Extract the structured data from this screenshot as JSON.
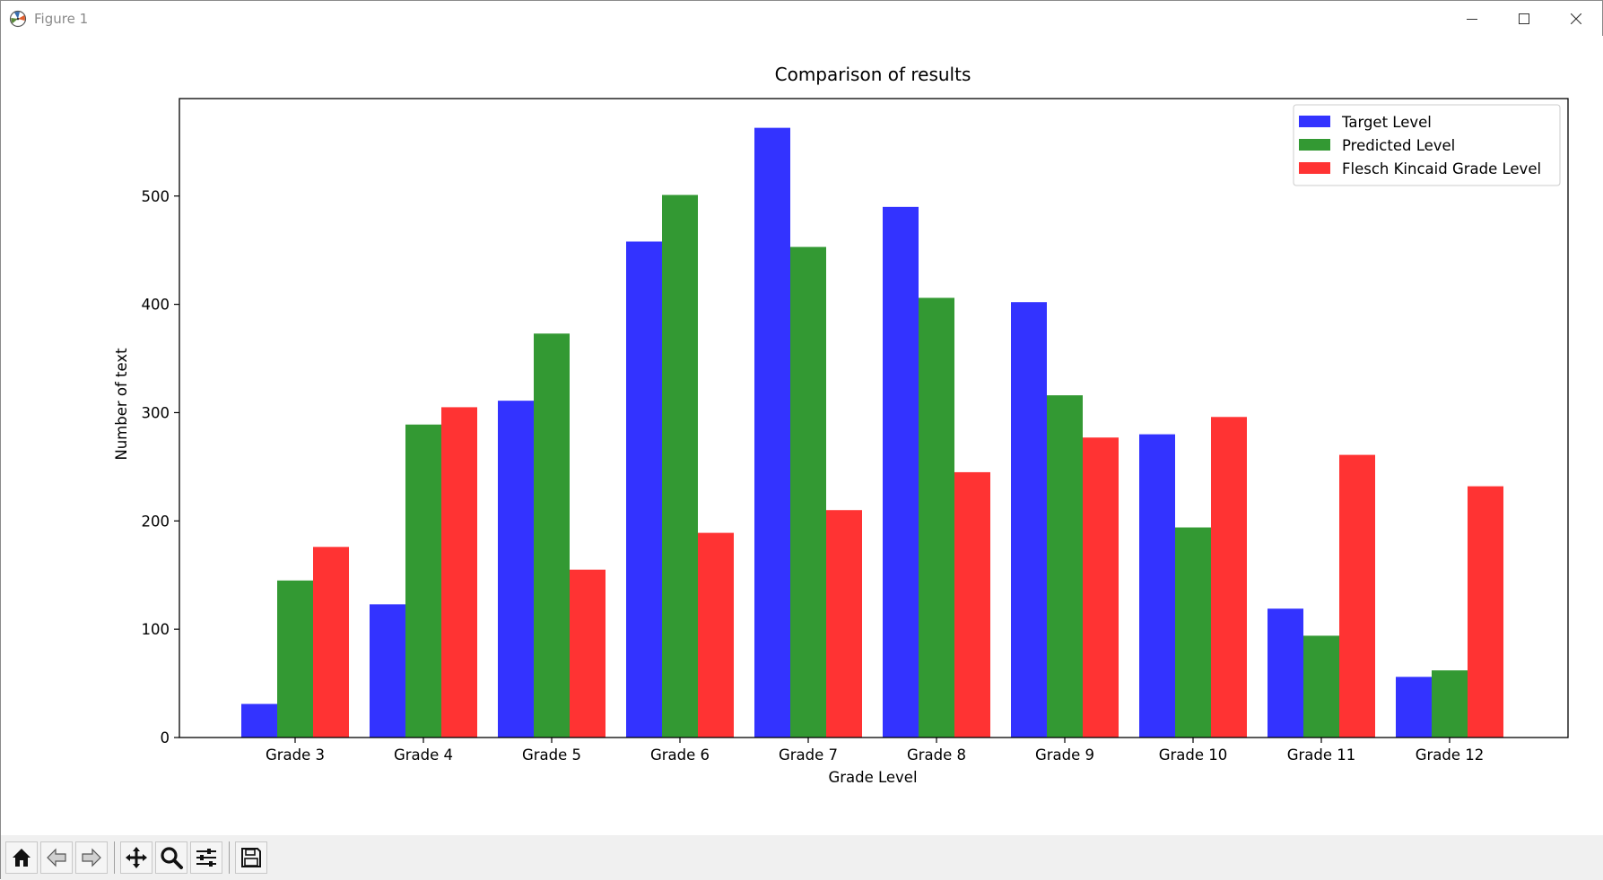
{
  "window": {
    "title": "Figure 1"
  },
  "toolbar": {
    "icons": [
      "home-icon",
      "back-arrow-icon",
      "forward-arrow-icon",
      "pan-icon",
      "zoom-icon",
      "configure-subplots-icon",
      "save-icon"
    ]
  },
  "chart_data": {
    "type": "bar",
    "title": "Comparison of results",
    "xlabel": "Grade Level",
    "ylabel": "Number of text",
    "categories": [
      "Grade 3",
      "Grade 4",
      "Grade 5",
      "Grade 6",
      "Grade 7",
      "Grade 8",
      "Grade 9",
      "Grade 10",
      "Grade 11",
      "Grade 12"
    ],
    "ylim": [
      0,
      590
    ],
    "yticks": [
      0,
      100,
      200,
      300,
      400,
      500
    ],
    "grid": false,
    "legend_position": "top-right",
    "series": [
      {
        "name": "Target Level",
        "color": "#3333ff",
        "values": [
          31,
          123,
          311,
          458,
          563,
          490,
          402,
          280,
          119,
          56
        ]
      },
      {
        "name": "Predicted Level",
        "color": "#339933",
        "values": [
          145,
          289,
          373,
          501,
          453,
          406,
          316,
          194,
          94,
          62
        ]
      },
      {
        "name": "Flesch Kincaid Grade Level",
        "color": "#ff3333",
        "values": [
          176,
          305,
          155,
          189,
          210,
          245,
          277,
          296,
          261,
          232
        ]
      }
    ]
  }
}
